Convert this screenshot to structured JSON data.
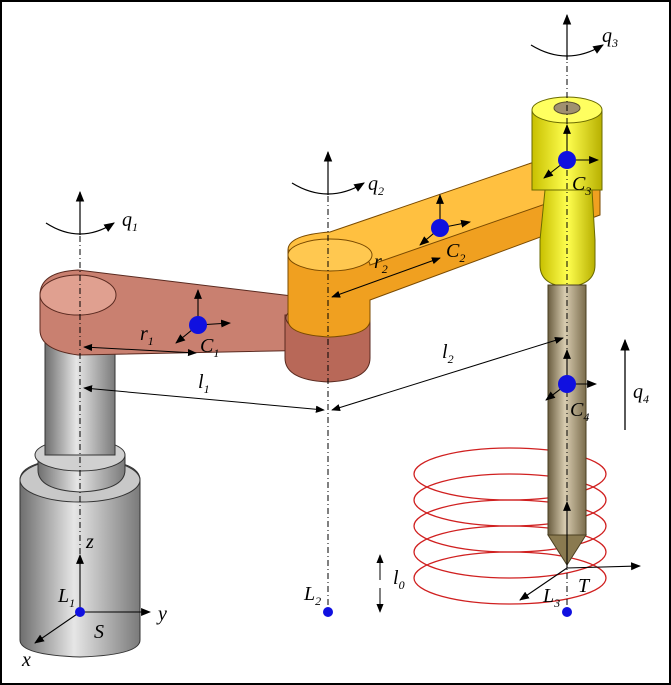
{
  "diagram": {
    "axes": {
      "x": "x",
      "y": "y",
      "z": "z"
    },
    "base_frame": "S",
    "joint_rotations": [
      {
        "base": "q",
        "sub": "1"
      },
      {
        "base": "q",
        "sub": "2"
      },
      {
        "base": "q",
        "sub": "3"
      }
    ],
    "prismatic_joint": {
      "base": "q",
      "sub": "4"
    },
    "centers_of_mass": [
      {
        "base": "C",
        "sub": "1"
      },
      {
        "base": "C",
        "sub": "2"
      },
      {
        "base": "C",
        "sub": "3"
      },
      {
        "base": "C",
        "sub": "4"
      }
    ],
    "link_lengths": [
      {
        "base": "l",
        "sub": "1"
      },
      {
        "base": "l",
        "sub": "2"
      }
    ],
    "com_distances": [
      {
        "base": "r",
        "sub": "1"
      },
      {
        "base": "r",
        "sub": "2"
      }
    ],
    "ground_points": [
      {
        "base": "L",
        "sub": "1"
      },
      {
        "base": "L",
        "sub": "2"
      },
      {
        "base": "L",
        "sub": "3"
      }
    ],
    "offset": {
      "base": "l",
      "sub": "0"
    },
    "tool_frame": "T",
    "colors": {
      "base_column": "#b8b8b8",
      "link1": "#c98070",
      "link2": "#f0a020",
      "link3": "#ffff20",
      "tool": "#b0a080",
      "spiral": "#d02020",
      "point": "#1010e0"
    }
  }
}
